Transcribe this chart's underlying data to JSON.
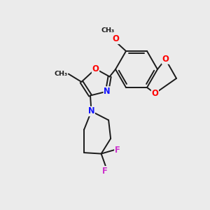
{
  "background_color": "#ebebeb",
  "bond_color": "#1a1a1a",
  "atom_colors": {
    "O": "#ff0000",
    "N": "#1414ff",
    "F": "#cc33cc",
    "C": "#1a1a1a"
  },
  "figsize": [
    3.0,
    3.0
  ],
  "dpi": 100
}
